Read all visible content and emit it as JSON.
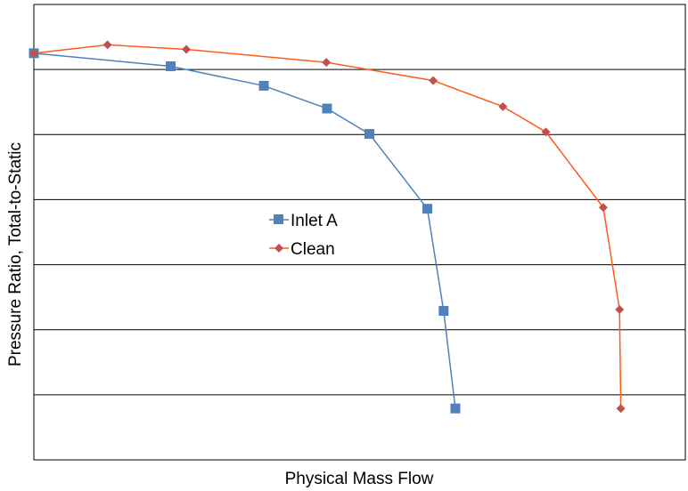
{
  "chart_data": {
    "type": "line",
    "title": "",
    "xlabel": "Physical Mass Flow",
    "ylabel": "Pressure Ratio, Total-to-Static",
    "xlim": [
      0,
      100
    ],
    "ylim": [
      0,
      7
    ],
    "grid": {
      "horizontal": true,
      "vertical": false
    },
    "legend_position": "center-left",
    "series": [
      {
        "name": "Inlet A",
        "color": "#4f81bd",
        "marker": "square",
        "x": [
          0,
          21.0,
          35.3,
          45.0,
          51.5,
          60.4,
          62.9,
          64.7
        ],
        "y": [
          6.25,
          6.05,
          5.75,
          5.4,
          5.01,
          3.86,
          2.29,
          0.79
        ]
      },
      {
        "name": "Clean",
        "color": "#ff5b16",
        "marker": "diamond",
        "x": [
          0,
          11.3,
          23.4,
          44.9,
          61.3,
          72.0,
          78.6,
          87.4,
          89.9,
          90.1
        ],
        "y": [
          6.25,
          6.38,
          6.31,
          6.11,
          5.83,
          5.43,
          5.04,
          3.88,
          2.31,
          0.79
        ]
      }
    ]
  }
}
